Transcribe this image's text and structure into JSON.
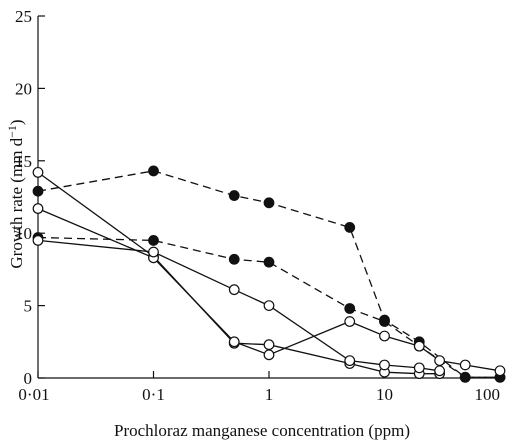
{
  "chart_data": {
    "type": "line",
    "xlabel": "Prochloraz manganese concentration (ppm)",
    "ylabel": {
      "main": "Growth rate (mm d",
      "sup": "−1",
      "close": ")"
    },
    "xscale": "log",
    "xlim": [
      0.01,
      100
    ],
    "ylim": [
      0,
      25
    ],
    "x_ticks": [
      0.01,
      0.1,
      1,
      10,
      100
    ],
    "x_tick_labels": [
      "0·01",
      "0·1",
      "1",
      "10",
      "100"
    ],
    "y_ticks": [
      0,
      5,
      10,
      15,
      20,
      25
    ],
    "y_tick_labels": [
      "0",
      "5",
      "10",
      "15",
      "20",
      "25"
    ],
    "grid": false,
    "series": [
      {
        "style": "dashed",
        "marker": "filled",
        "points": [
          [
            0.01,
            12.9
          ],
          [
            0.1,
            14.3
          ],
          [
            0.5,
            12.6
          ],
          [
            1,
            12.1
          ],
          [
            5,
            10.4
          ],
          [
            10,
            4.0
          ],
          [
            20,
            2.5
          ],
          [
            50,
            0.05
          ],
          [
            100,
            0.05
          ]
        ]
      },
      {
        "style": "dashed",
        "marker": "filled",
        "points": [
          [
            0.01,
            9.7
          ],
          [
            0.1,
            9.5
          ],
          [
            0.5,
            8.2
          ],
          [
            1,
            8.0
          ],
          [
            5,
            4.8
          ],
          [
            10,
            3.9
          ],
          [
            20,
            2.2
          ],
          [
            50,
            0.05
          ],
          [
            100,
            0.05
          ]
        ]
      },
      {
        "style": "solid",
        "marker": "open",
        "points": [
          [
            0.01,
            14.2
          ],
          [
            0.1,
            8.4
          ],
          [
            0.5,
            2.4
          ],
          [
            1,
            2.3
          ],
          [
            5,
            1.0
          ],
          [
            10,
            0.4
          ],
          [
            20,
            0.3
          ],
          [
            30,
            0.3
          ]
        ]
      },
      {
        "style": "solid",
        "marker": "open",
        "points": [
          [
            0.01,
            11.7
          ],
          [
            0.1,
            8.3
          ],
          [
            0.5,
            2.5
          ],
          [
            1,
            1.6
          ],
          [
            5,
            3.9
          ],
          [
            10,
            2.9
          ],
          [
            20,
            2.2
          ],
          [
            30,
            1.2
          ],
          [
            50,
            0.9
          ],
          [
            100,
            0.5
          ]
        ]
      },
      {
        "style": "solid",
        "marker": "open",
        "points": [
          [
            0.01,
            9.5
          ],
          [
            0.1,
            8.7
          ],
          [
            0.5,
            6.1
          ],
          [
            1,
            5.0
          ],
          [
            5,
            1.2
          ],
          [
            10,
            0.9
          ],
          [
            20,
            0.7
          ],
          [
            30,
            0.5
          ]
        ]
      }
    ]
  }
}
